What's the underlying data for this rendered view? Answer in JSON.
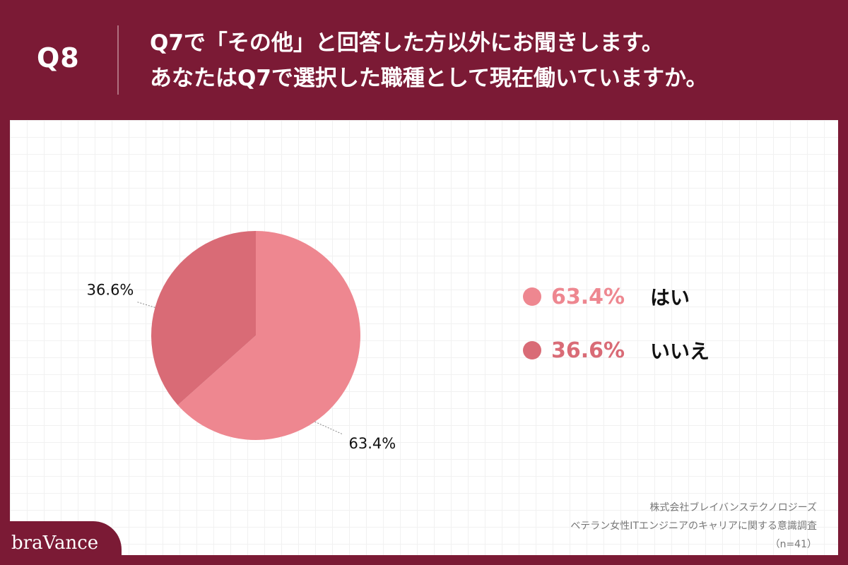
{
  "header": {
    "question_number": "Q8",
    "question_lines": [
      "Q7で「その他」と回答した方以外にお聞きします。",
      "あなたはQ7で選択した職種として現在働いていますか。"
    ]
  },
  "chart_data": {
    "type": "pie",
    "categories": [
      "はい",
      "いいえ"
    ],
    "values": [
      63.4,
      36.6
    ],
    "data_labels": [
      "63.4%",
      "36.6%"
    ],
    "colors": [
      "#ee8790",
      "#d96b76"
    ],
    "legend_position": "right",
    "title": ""
  },
  "legend": {
    "items": [
      {
        "pct": "63.4%",
        "label": "はい",
        "color": "#ee8790"
      },
      {
        "pct": "36.6%",
        "label": "いいえ",
        "color": "#d96b76"
      }
    ]
  },
  "footer": {
    "company": "株式会社ブレイバンステクノロジーズ",
    "survey": "ベテラン女性ITエンジニアのキャリアに関する意識調査",
    "sample": "（n=41）"
  },
  "brand": {
    "name": "braVance"
  },
  "colors": {
    "background": "#7b1a35",
    "accent_pct": "#d9707c"
  }
}
